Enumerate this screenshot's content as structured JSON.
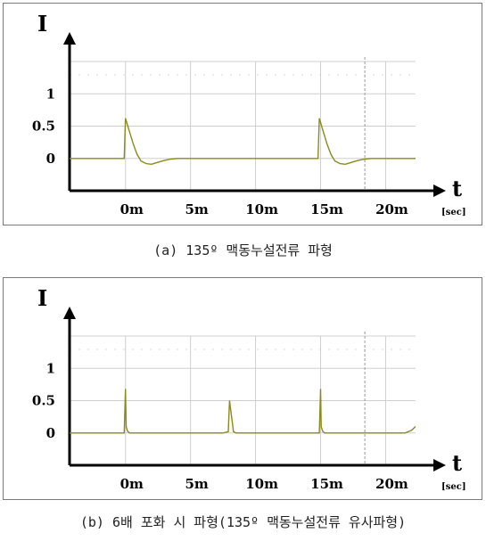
{
  "chart_data": [
    {
      "type": "line",
      "caption": "(a) 135º 맥동누설전류 파형",
      "ylabel": "I",
      "xlabel": "t",
      "xunit": "[sec]",
      "yticks": [
        "1",
        "0.5",
        "0"
      ],
      "xticks": [
        "0m",
        "5m",
        "10m",
        "15m",
        "20m"
      ],
      "ylim": [
        -0.5,
        1.5
      ],
      "xlim": [
        -4.3,
        22.3
      ],
      "series": [
        {
          "color": "#8a8a1e",
          "x": [
            -4.3,
            -0.1,
            0.0,
            0.3,
            0.6,
            0.9,
            1.2,
            1.6,
            2.0,
            2.5,
            3.0,
            3.5,
            4.0,
            5.0,
            8.0,
            11.0,
            14.0,
            14.8,
            14.9,
            15.2,
            15.5,
            15.8,
            16.1,
            16.5,
            16.9,
            17.4,
            17.9,
            18.4,
            18.9,
            19.5,
            22.3
          ],
          "y": [
            0.0,
            0.0,
            0.62,
            0.42,
            0.22,
            0.06,
            -0.04,
            -0.08,
            -0.09,
            -0.06,
            -0.03,
            -0.01,
            0.0,
            0.0,
            0.0,
            0.0,
            0.0,
            0.0,
            0.62,
            0.42,
            0.22,
            0.06,
            -0.04,
            -0.08,
            -0.09,
            -0.06,
            -0.03,
            -0.01,
            0.0,
            0.0,
            0.0
          ]
        }
      ]
    },
    {
      "type": "line",
      "caption": "(b) 6배 포화 시 파형(135º 맥동누설전류 유사파형)",
      "ylabel": "I",
      "xlabel": "t",
      "xunit": "[sec]",
      "yticks": [
        "1",
        "0.5",
        "0"
      ],
      "xticks": [
        "0m",
        "5m",
        "10m",
        "15m",
        "20m"
      ],
      "ylim": [
        -0.5,
        1.5
      ],
      "xlim": [
        -4.3,
        22.3
      ],
      "series": [
        {
          "color": "#8a8a1e",
          "x": [
            -4.3,
            -0.1,
            0.0,
            0.05,
            0.15,
            0.3,
            5.0,
            7.5,
            7.9,
            8.0,
            8.3,
            8.5,
            11.0,
            14.9,
            15.0,
            15.05,
            15.15,
            15.3,
            20.0,
            21.5,
            22.0,
            22.3
          ],
          "y": [
            0.0,
            0.0,
            0.68,
            0.1,
            0.03,
            0.0,
            0.0,
            0.0,
            0.02,
            0.5,
            0.02,
            0.0,
            0.0,
            0.0,
            0.68,
            0.1,
            0.03,
            0.0,
            0.0,
            0.0,
            0.04,
            0.1
          ]
        }
      ]
    }
  ]
}
